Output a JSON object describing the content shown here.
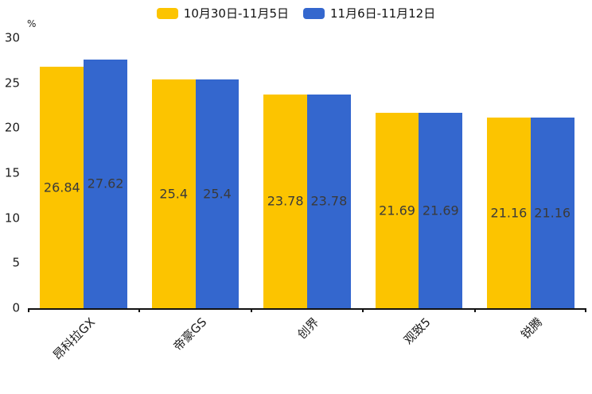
{
  "chart_data": {
    "type": "bar",
    "title": "",
    "xlabel": "",
    "ylabel": "%",
    "categories": [
      "昂科拉GX",
      "帝豪GS",
      "创界",
      "观致5",
      "锐腾"
    ],
    "series": [
      {
        "name": "10月30日-11月5日",
        "color": "#FCC400",
        "values": [
          26.84,
          25.4,
          23.78,
          21.69,
          21.16
        ]
      },
      {
        "name": "11月6日-11月12日",
        "color": "#3467CE",
        "values": [
          27.62,
          25.4,
          23.78,
          21.69,
          21.16
        ]
      }
    ],
    "ylim": [
      0,
      30
    ],
    "yticks": [
      0,
      5,
      10,
      15,
      20,
      25,
      30
    ],
    "grid": false,
    "legend_position": "top-center",
    "value_labels": "inside-center",
    "category_label_rotation_deg": -45
  }
}
